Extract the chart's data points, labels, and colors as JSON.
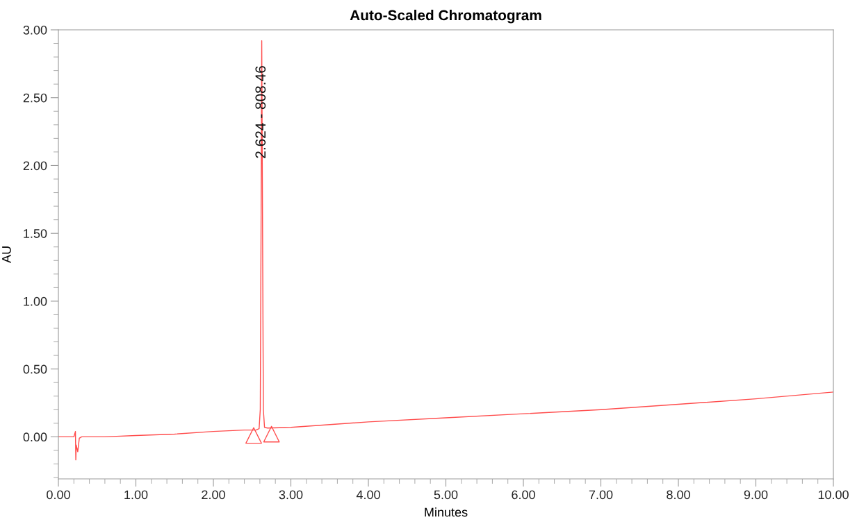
{
  "chart_data": {
    "type": "line",
    "title": "Auto-Scaled Chromatogram",
    "xlabel": "Minutes",
    "ylabel": "AU",
    "xlim": [
      0,
      10
    ],
    "xticks": [
      {
        "value": 0,
        "label": "0.00"
      },
      {
        "value": 1,
        "label": "1.00"
      },
      {
        "value": 2,
        "label": "2.00"
      },
      {
        "value": 3,
        "label": "3.00"
      },
      {
        "value": 4,
        "label": "4.00"
      },
      {
        "value": 5,
        "label": "5.00"
      },
      {
        "value": 6,
        "label": "6.00"
      },
      {
        "value": 7,
        "label": "7.00"
      },
      {
        "value": 8,
        "label": "8.00"
      },
      {
        "value": 9,
        "label": "9.00"
      },
      {
        "value": 10,
        "label": "10.00"
      }
    ],
    "ylim": [
      -0.31,
      3.0
    ],
    "yticks": [
      {
        "value": 0,
        "label": "0.00"
      },
      {
        "value": 0.5,
        "label": "0.50"
      },
      {
        "value": 1,
        "label": "1.00"
      },
      {
        "value": 1.5,
        "label": "1.50"
      },
      {
        "value": 2,
        "label": "2.00"
      },
      {
        "value": 2.5,
        "label": "2.50"
      },
      {
        "value": 3,
        "label": "3.00"
      }
    ],
    "grid": false,
    "marker": "none",
    "line_style": "solid",
    "series": [
      {
        "color": "#ff4d4d",
        "x": [
          0,
          0.2,
          0.22,
          0.225,
          0.23,
          0.25,
          0.27,
          0.3,
          0.6,
          1.0,
          1.5,
          2.0,
          2.4,
          2.55,
          2.59,
          2.605,
          2.615,
          2.624,
          2.635,
          2.645,
          2.66,
          2.7,
          3.0,
          4.0,
          5.0,
          6.0,
          7.0,
          8.0,
          9.0,
          10.0
        ],
        "values": [
          0,
          0,
          0.04,
          -0.17,
          -0.06,
          -0.11,
          -0.01,
          0,
          0,
          0.01,
          0.02,
          0.04,
          0.05,
          0.05,
          0.06,
          0.2,
          1.5,
          2.92,
          1.5,
          0.2,
          0.07,
          0.065,
          0.07,
          0.11,
          0.14,
          0.17,
          0.2,
          0.24,
          0.28,
          0.33
        ]
      },
      {
        "type": "scatter",
        "color": "#ff4d4d",
        "marker": "triangle",
        "x": [
          2.52,
          2.75
        ],
        "values": [
          0.01,
          0.02
        ]
      }
    ],
    "annotations": [
      {
        "text": "2.624 - 808.46",
        "x": 2.624,
        "y": 2.05
      }
    ]
  }
}
